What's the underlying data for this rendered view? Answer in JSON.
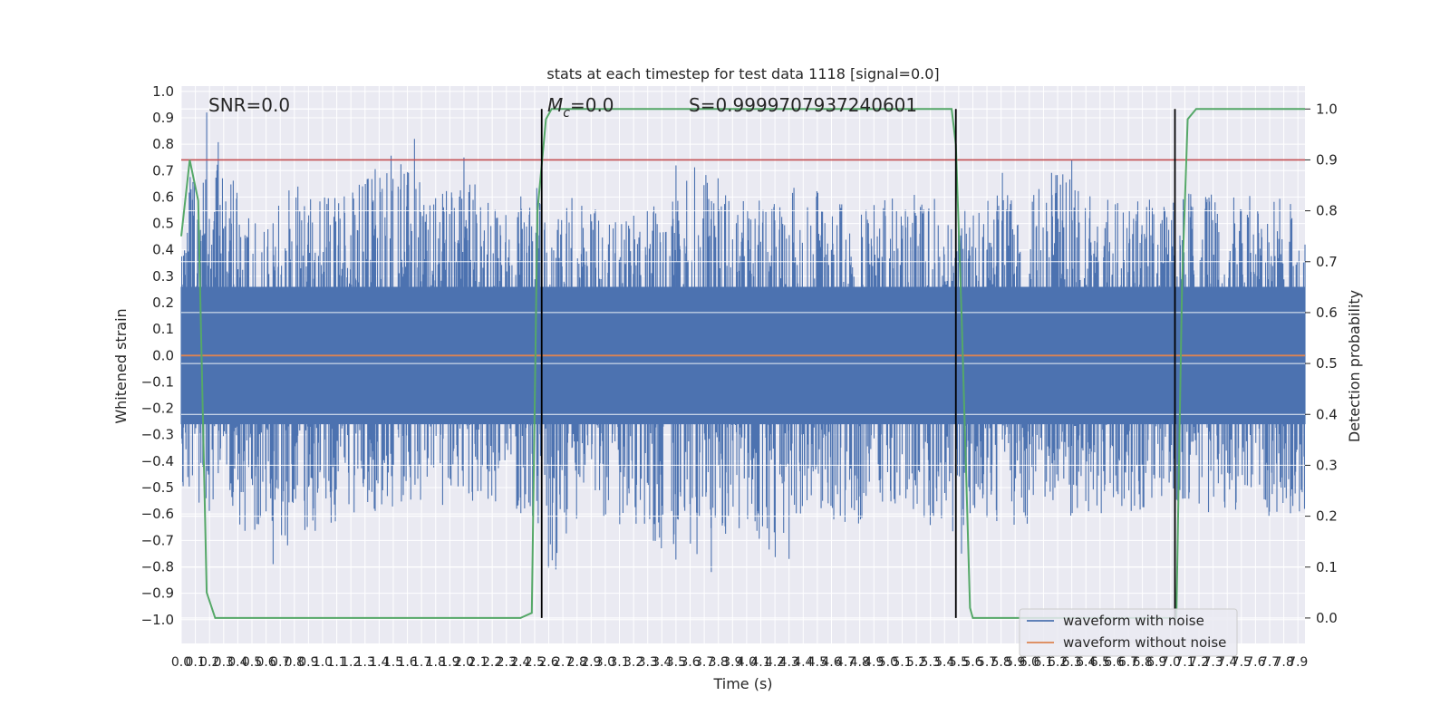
{
  "chart_data": {
    "type": "line",
    "title": "stats at each timestep for test data 1118 [signal=0.0]",
    "xlabel": "Time (s)",
    "ylabel": "Whitened strain",
    "y2label": "Detection probability",
    "xlim": [
      0.0,
      7.95
    ],
    "ylim": [
      -1.09,
      1.02
    ],
    "y2lim": [
      -0.05,
      1.045
    ],
    "xticks": [
      0.0,
      0.1,
      0.2,
      0.3,
      0.4,
      0.5,
      0.6,
      0.7,
      0.8,
      0.9,
      1.0,
      1.1,
      1.2,
      1.3,
      1.4,
      1.5,
      1.6,
      1.7,
      1.8,
      1.9,
      2.0,
      2.1,
      2.2,
      2.3,
      2.4,
      2.5,
      2.6,
      2.7,
      2.8,
      2.9,
      3.0,
      3.1,
      3.2,
      3.3,
      3.4,
      3.5,
      3.6,
      3.7,
      3.8,
      3.9,
      4.0,
      4.1,
      4.2,
      4.3,
      4.4,
      4.5,
      4.6,
      4.7,
      4.8,
      4.9,
      5.0,
      5.1,
      5.2,
      5.3,
      5.4,
      5.5,
      5.6,
      5.7,
      5.8,
      5.9,
      6.0,
      6.1,
      6.2,
      6.3,
      6.4,
      6.5,
      6.6,
      6.7,
      6.8,
      6.9,
      7.0,
      7.1,
      7.2,
      7.3,
      7.4,
      7.5,
      7.6,
      7.7,
      7.8,
      7.9
    ],
    "yticks": [
      -1.0,
      -0.9,
      -0.8,
      -0.7,
      -0.6,
      -0.5,
      -0.4,
      -0.3,
      -0.2,
      -0.1,
      0.0,
      0.1,
      0.2,
      0.3,
      0.4,
      0.5,
      0.6,
      0.7,
      0.8,
      0.9,
      1.0
    ],
    "y2ticks": [
      0.0,
      0.1,
      0.2,
      0.3,
      0.4,
      0.5,
      0.6,
      0.7,
      0.8,
      0.9,
      1.0
    ],
    "grid": true,
    "legend_position": "lower-right",
    "series": [
      {
        "name": "waveform with noise",
        "color": "#4c72b0",
        "axis": "left",
        "envelope_x": [
          0.0,
          0.2,
          0.4,
          0.6,
          0.8,
          1.0,
          1.2,
          1.4,
          1.6,
          1.8,
          2.0,
          2.2,
          2.4,
          2.6,
          2.8,
          3.0,
          3.2,
          3.4,
          3.6,
          3.8,
          4.0,
          4.2,
          4.4,
          4.6,
          4.8,
          5.0,
          5.2,
          5.4,
          5.6,
          5.8,
          6.0,
          6.2,
          6.4,
          6.6,
          6.8,
          7.0,
          7.2,
          7.4,
          7.6,
          7.8,
          7.95
        ],
        "envelope_upper": [
          0.6,
          0.92,
          0.62,
          0.55,
          0.66,
          0.6,
          0.62,
          0.72,
          0.82,
          0.6,
          0.74,
          0.55,
          0.62,
          0.65,
          0.6,
          0.58,
          0.62,
          0.55,
          0.72,
          0.7,
          0.6,
          0.62,
          0.65,
          0.6,
          0.55,
          0.6,
          0.62,
          0.58,
          0.6,
          0.7,
          0.6,
          0.75,
          0.62,
          0.6,
          0.6,
          0.6,
          0.62,
          0.6,
          0.62,
          0.6,
          0.58
        ],
        "envelope_lower": [
          -0.5,
          -0.6,
          -0.65,
          -0.79,
          -0.7,
          -0.66,
          -0.62,
          -0.6,
          -0.55,
          -0.58,
          -0.6,
          -0.55,
          -0.6,
          -0.81,
          -0.65,
          -0.62,
          -0.68,
          -0.74,
          -0.82,
          -0.7,
          -0.65,
          -0.78,
          -0.6,
          -0.62,
          -0.66,
          -0.6,
          -0.58,
          -0.75,
          -0.6,
          -0.65,
          -0.64,
          -0.6,
          -0.62,
          -0.58,
          -0.6,
          -0.55,
          -0.6,
          -0.58,
          -0.6,
          -0.62,
          -0.6
        ],
        "spikes": [
          [
            0.18,
            0.92
          ],
          [
            1.65,
            0.82
          ],
          [
            2.0,
            0.75
          ],
          [
            3.5,
            0.72
          ],
          [
            6.3,
            0.74
          ],
          [
            0.65,
            -0.79
          ],
          [
            2.65,
            -0.81
          ],
          [
            3.75,
            -0.82
          ],
          [
            4.3,
            -0.77
          ],
          [
            5.52,
            -0.75
          ],
          [
            7.05,
            -0.55
          ]
        ]
      },
      {
        "name": "waveform without noise",
        "color": "#dd8452",
        "axis": "left",
        "x": [
          0.0,
          7.95
        ],
        "y": [
          0.0,
          0.0
        ]
      },
      {
        "name": "",
        "color": "#55a868",
        "axis": "right",
        "x": [
          0.0,
          0.06,
          0.12,
          0.18,
          0.24,
          0.3,
          2.4,
          2.48,
          2.52,
          2.58,
          2.62,
          2.7,
          5.45,
          5.48,
          5.52,
          5.58,
          5.6,
          5.7,
          6.8,
          6.95,
          7.04,
          7.08,
          7.12,
          7.18,
          7.95
        ],
        "y": [
          0.75,
          0.9,
          0.82,
          0.05,
          0.0,
          0.0,
          0.0,
          0.01,
          0.8,
          0.98,
          1.0,
          1.0,
          1.0,
          0.93,
          0.6,
          0.02,
          0.0,
          0.0,
          0.0,
          0.0,
          0.0,
          0.65,
          0.98,
          1.0,
          1.0
        ]
      }
    ],
    "threshold": {
      "y2": 0.9,
      "color": "#c44e52"
    },
    "detections": [
      2.55,
      5.48,
      7.03
    ],
    "annotations": [
      "SNR=0.0",
      "M",
      "c",
      "=0.0",
      "S=0.9999707937240601"
    ]
  }
}
